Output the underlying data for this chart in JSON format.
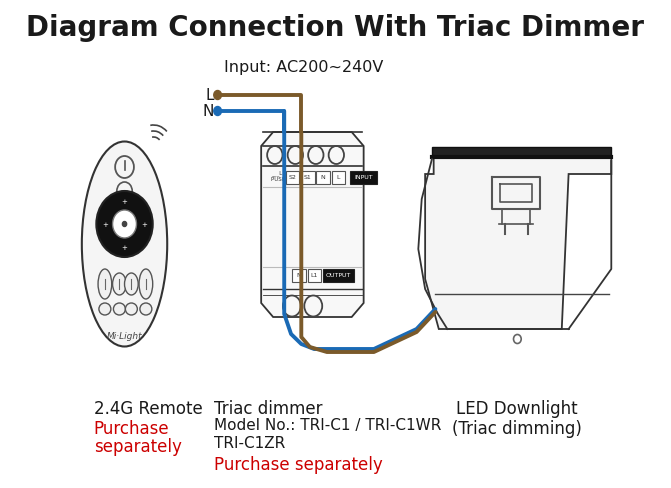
{
  "title": "Diagram Connection With Triac Dimmer",
  "title_fontsize": 20,
  "title_fontweight": "bold",
  "bg_color": "#ffffff",
  "text_color": "#1a1a1a",
  "red_color": "#cc0000",
  "orange_color": "#cc6600",
  "input_label": "Input: AC200~240V",
  "L_label": "L",
  "N_label": "N",
  "remote_label1": "2.4G Remote",
  "remote_label2": "Purchase\nseparately",
  "dimmer_label1": "Triac dimmer",
  "dimmer_label2": "Model No.: TRI-C1 / TRI-C1WR\nTRI-C1ZR",
  "dimmer_label3": "Purchase separately",
  "downlight_label1": "LED Downlight",
  "downlight_label2": "(Triac dimming)",
  "brown_color": "#7B5A2A",
  "blue_color": "#1a6ab5"
}
